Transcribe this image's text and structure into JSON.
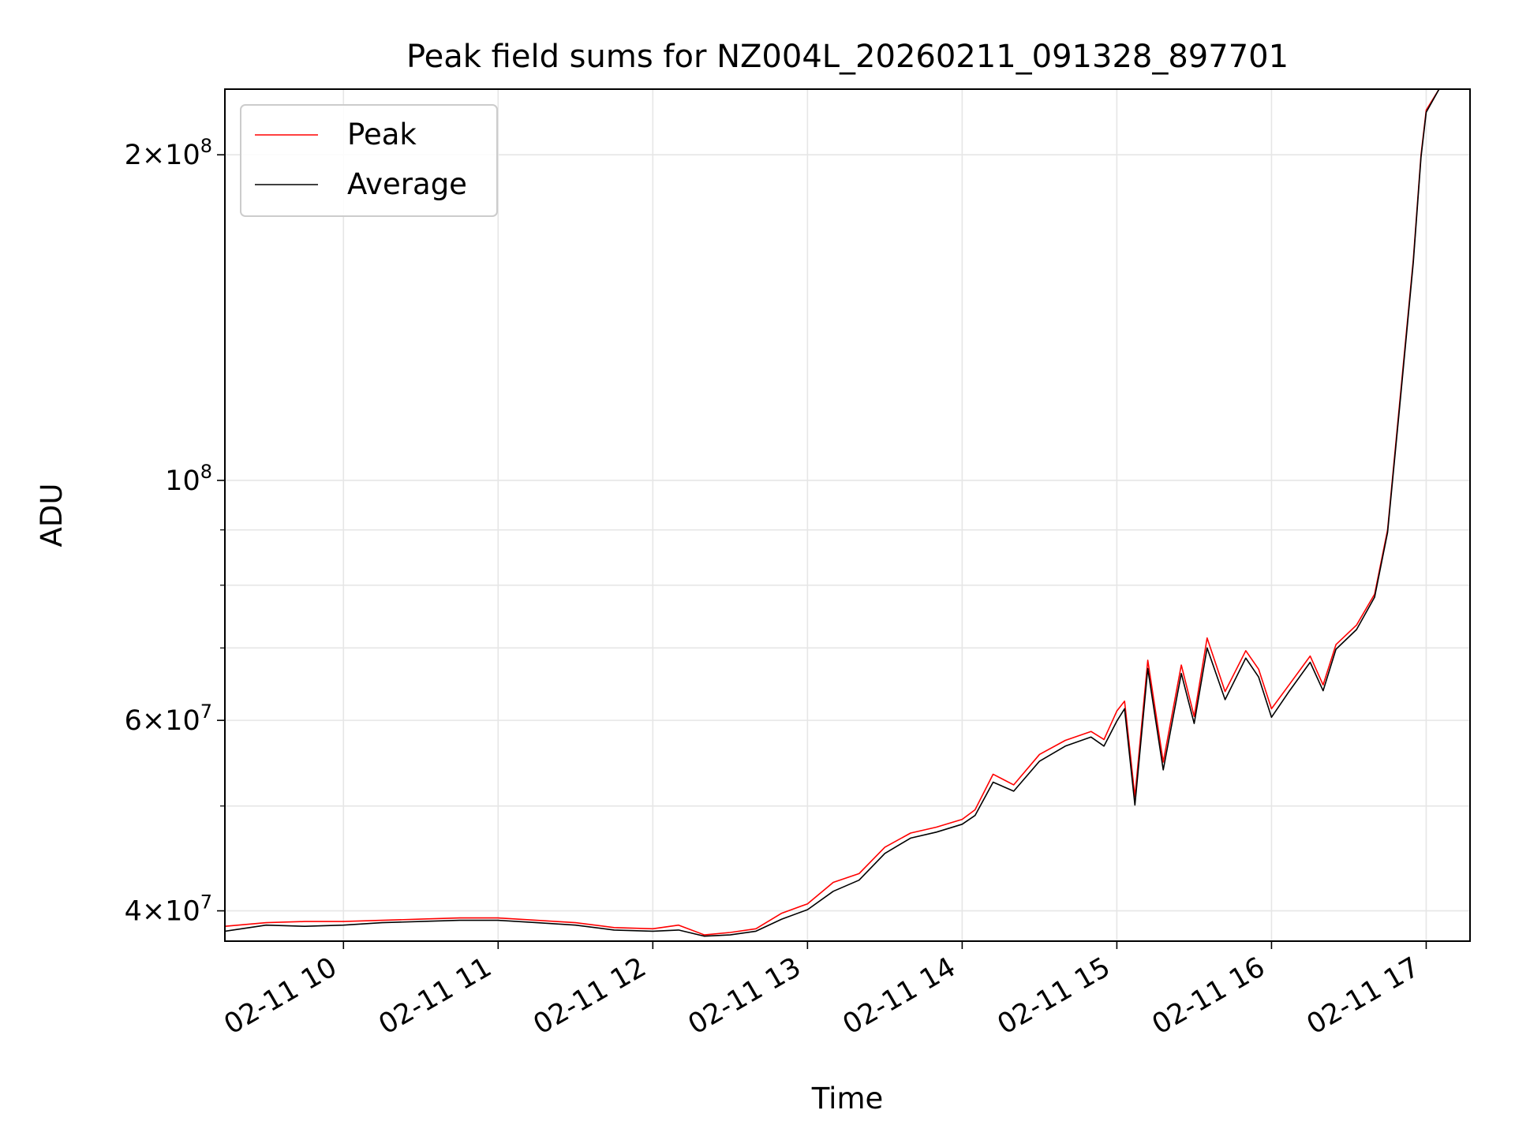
{
  "chart_data": {
    "type": "line",
    "title": "Peak field sums for NZ004L_20260211_091328_897701",
    "xlabel": "Time",
    "ylabel": "ADU",
    "y_scale": "log",
    "grid": true,
    "legend_placement": "top-left",
    "x_range": [
      "2026-02-11 09:14",
      "2026-02-11 17:17"
    ],
    "ylim": [
      37500000,
      230000000
    ],
    "x_tick_labels": [
      "02-11 10",
      "02-11 11",
      "02-11 12",
      "02-11 13",
      "02-11 14",
      "02-11 15",
      "02-11 16",
      "02-11 17"
    ],
    "y_tick_labels": [
      {
        "value": 40000000,
        "mantissa": "4",
        "exp": "7"
      },
      {
        "value": 60000000,
        "mantissa": "6",
        "exp": "7"
      },
      {
        "value": 100000000,
        "mantissa": "",
        "exp": "8"
      },
      {
        "value": 200000000,
        "mantissa": "2",
        "exp": "8"
      }
    ],
    "series": [
      {
        "name": "Peak",
        "color": "#ff0000",
        "x": [
          "2026-02-11 09:14",
          "2026-02-11 09:30",
          "2026-02-11 09:45",
          "2026-02-11 10:00",
          "2026-02-11 10:15",
          "2026-02-11 10:30",
          "2026-02-11 10:45",
          "2026-02-11 11:00",
          "2026-02-11 11:15",
          "2026-02-11 11:30",
          "2026-02-11 11:45",
          "2026-02-11 12:00",
          "2026-02-11 12:10",
          "2026-02-11 12:20",
          "2026-02-11 12:30",
          "2026-02-11 12:40",
          "2026-02-11 12:50",
          "2026-02-11 13:00",
          "2026-02-11 13:10",
          "2026-02-11 13:20",
          "2026-02-11 13:30",
          "2026-02-11 13:40",
          "2026-02-11 13:50",
          "2026-02-11 14:00",
          "2026-02-11 14:05",
          "2026-02-11 14:12",
          "2026-02-11 14:20",
          "2026-02-11 14:30",
          "2026-02-11 14:40",
          "2026-02-11 14:50",
          "2026-02-11 14:55",
          "2026-02-11 15:00",
          "2026-02-11 15:03",
          "2026-02-11 15:07",
          "2026-02-11 15:12",
          "2026-02-11 15:18",
          "2026-02-11 15:25",
          "2026-02-11 15:30",
          "2026-02-11 15:35",
          "2026-02-11 15:42",
          "2026-02-11 15:50",
          "2026-02-11 15:55",
          "2026-02-11 16:00",
          "2026-02-11 16:07",
          "2026-02-11 16:15",
          "2026-02-11 16:20",
          "2026-02-11 16:25",
          "2026-02-11 16:33",
          "2026-02-11 16:40",
          "2026-02-11 16:45",
          "2026-02-11 16:50",
          "2026-02-11 16:55",
          "2026-02-11 16:58",
          "2026-02-11 17:00",
          "2026-02-11 17:05",
          "2026-02-11 17:17"
        ],
        "values": [
          38700000,
          39000000,
          39100000,
          39100000,
          39200000,
          39300000,
          39400000,
          39400000,
          39200000,
          39000000,
          38600000,
          38500000,
          38800000,
          38000000,
          38200000,
          38500000,
          39800000,
          40600000,
          42500000,
          43300000,
          45800000,
          47200000,
          47800000,
          48600000,
          49600000,
          53500000,
          52300000,
          55800000,
          57500000,
          58600000,
          57600000,
          61200000,
          62500000,
          51000000,
          68200000,
          54900000,
          67500000,
          60500000,
          71500000,
          63800000,
          69600000,
          66900000,
          61500000,
          64800000,
          68800000,
          64700000,
          70500000,
          73500000,
          78500000,
          90000000,
          120000000,
          160000000,
          200000000,
          220000000,
          230000000,
          230000000
        ]
      },
      {
        "name": "Average",
        "color": "#000000",
        "x": [
          "2026-02-11 09:14",
          "2026-02-11 09:30",
          "2026-02-11 09:45",
          "2026-02-11 10:00",
          "2026-02-11 10:15",
          "2026-02-11 10:30",
          "2026-02-11 10:45",
          "2026-02-11 11:00",
          "2026-02-11 11:15",
          "2026-02-11 11:30",
          "2026-02-11 11:45",
          "2026-02-11 12:00",
          "2026-02-11 12:10",
          "2026-02-11 12:20",
          "2026-02-11 12:30",
          "2026-02-11 12:40",
          "2026-02-11 12:50",
          "2026-02-11 13:00",
          "2026-02-11 13:10",
          "2026-02-11 13:20",
          "2026-02-11 13:30",
          "2026-02-11 13:40",
          "2026-02-11 13:50",
          "2026-02-11 14:00",
          "2026-02-11 14:05",
          "2026-02-11 14:12",
          "2026-02-11 14:20",
          "2026-02-11 14:30",
          "2026-02-11 14:40",
          "2026-02-11 14:50",
          "2026-02-11 14:55",
          "2026-02-11 15:00",
          "2026-02-11 15:03",
          "2026-02-11 15:07",
          "2026-02-11 15:12",
          "2026-02-11 15:18",
          "2026-02-11 15:25",
          "2026-02-11 15:30",
          "2026-02-11 15:35",
          "2026-02-11 15:42",
          "2026-02-11 15:50",
          "2026-02-11 15:55",
          "2026-02-11 16:00",
          "2026-02-11 16:07",
          "2026-02-11 16:15",
          "2026-02-11 16:20",
          "2026-02-11 16:25",
          "2026-02-11 16:33",
          "2026-02-11 16:40",
          "2026-02-11 16:45",
          "2026-02-11 16:50",
          "2026-02-11 16:55",
          "2026-02-11 16:58",
          "2026-02-11 17:00",
          "2026-02-11 17:05",
          "2026-02-11 17:17"
        ],
        "values": [
          38300000,
          38800000,
          38700000,
          38800000,
          39000000,
          39100000,
          39200000,
          39200000,
          39000000,
          38800000,
          38400000,
          38300000,
          38400000,
          37900000,
          38000000,
          38300000,
          39300000,
          40100000,
          41700000,
          42700000,
          45200000,
          46700000,
          47300000,
          48100000,
          49000000,
          52600000,
          51600000,
          55000000,
          56800000,
          57900000,
          56800000,
          59900000,
          61500000,
          50100000,
          67000000,
          54000000,
          66300000,
          59600000,
          70000000,
          62700000,
          68500000,
          65800000,
          60400000,
          63900000,
          67900000,
          63900000,
          69800000,
          72800000,
          78000000,
          89500000,
          119000000,
          159000000,
          199000000,
          219000000,
          230000000,
          230000000
        ]
      }
    ]
  }
}
